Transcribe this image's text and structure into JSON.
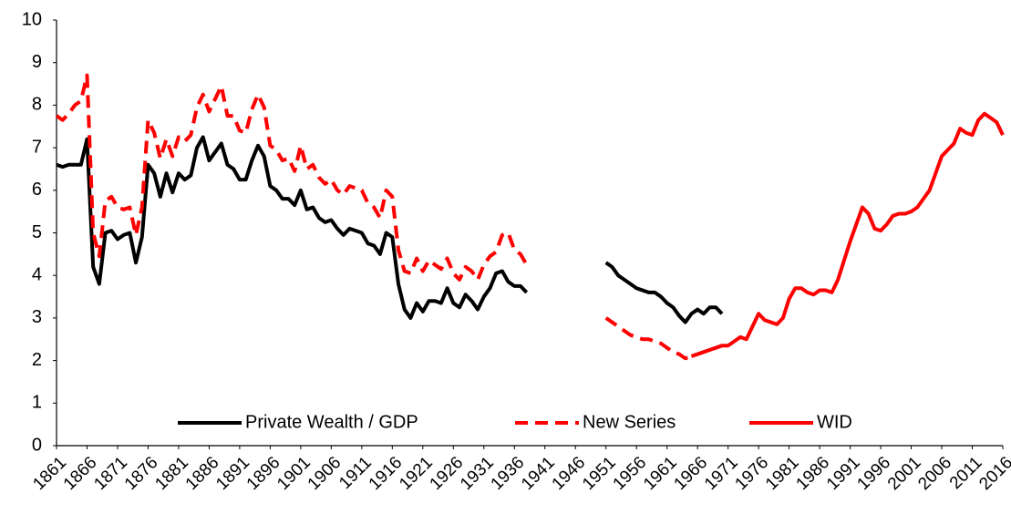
{
  "chart_data": {
    "type": "line",
    "x": [
      1861,
      1862,
      1863,
      1864,
      1865,
      1866,
      1867,
      1868,
      1869,
      1870,
      1871,
      1872,
      1873,
      1874,
      1875,
      1876,
      1877,
      1878,
      1879,
      1880,
      1881,
      1882,
      1883,
      1884,
      1885,
      1886,
      1887,
      1888,
      1889,
      1890,
      1891,
      1892,
      1893,
      1894,
      1895,
      1896,
      1897,
      1898,
      1899,
      1900,
      1901,
      1902,
      1903,
      1904,
      1905,
      1906,
      1907,
      1908,
      1909,
      1910,
      1911,
      1912,
      1913,
      1914,
      1915,
      1916,
      1917,
      1918,
      1919,
      1920,
      1921,
      1922,
      1923,
      1924,
      1925,
      1926,
      1927,
      1928,
      1929,
      1930,
      1931,
      1932,
      1933,
      1934,
      1935,
      1936,
      1937,
      1938,
      1939,
      1940,
      1941,
      1942,
      1943,
      1944,
      1945,
      1946,
      1947,
      1948,
      1949,
      1950,
      1951,
      1952,
      1953,
      1954,
      1955,
      1956,
      1957,
      1958,
      1959,
      1960,
      1961,
      1962,
      1963,
      1964,
      1965,
      1966,
      1967,
      1968,
      1969,
      1970,
      1971,
      1972,
      1973,
      1974,
      1975,
      1976,
      1977,
      1978,
      1979,
      1980,
      1981,
      1982,
      1983,
      1984,
      1985,
      1986,
      1987,
      1988,
      1989,
      1990,
      1991,
      1992,
      1993,
      1994,
      1995,
      1996,
      1997,
      1998,
      1999,
      2000,
      2001,
      2002,
      2003,
      2004,
      2005,
      2006,
      2007,
      2008,
      2009,
      2010,
      2011,
      2012,
      2013,
      2014,
      2015,
      2016
    ],
    "series": [
      {
        "name": "Private Wealth / GDP",
        "color": "#000000",
        "dashed": false,
        "values": [
          6.6,
          6.55,
          6.6,
          6.6,
          6.6,
          7.2,
          4.2,
          3.8,
          5.0,
          5.05,
          4.85,
          4.95,
          5.0,
          4.3,
          4.9,
          6.6,
          6.4,
          5.85,
          6.4,
          5.95,
          6.4,
          6.25,
          6.35,
          7.0,
          7.25,
          6.7,
          6.9,
          7.1,
          6.6,
          6.5,
          6.25,
          6.25,
          6.7,
          7.05,
          6.8,
          6.1,
          6.0,
          5.8,
          5.8,
          5.65,
          6.0,
          5.55,
          5.6,
          5.35,
          5.25,
          5.3,
          5.1,
          4.95,
          5.1,
          5.05,
          5.0,
          4.75,
          4.7,
          4.5,
          5.0,
          4.9,
          3.8,
          3.2,
          3.0,
          3.35,
          3.15,
          3.4,
          3.4,
          3.35,
          3.7,
          3.35,
          3.25,
          3.55,
          3.4,
          3.2,
          3.5,
          3.7,
          4.05,
          4.1,
          3.85,
          3.75,
          3.75,
          3.6,
          null,
          null,
          null,
          null,
          null,
          null,
          null,
          null,
          null,
          null,
          null,
          null,
          4.3,
          4.2,
          4.0,
          3.9,
          3.8,
          3.7,
          3.65,
          3.6,
          3.6,
          3.5,
          3.35,
          3.25,
          3.05,
          2.9,
          3.1,
          3.2,
          3.1,
          3.25,
          3.25,
          3.1,
          null,
          null,
          null,
          null,
          null,
          null,
          null,
          null,
          null,
          null,
          null,
          null,
          null,
          null,
          null,
          null,
          null,
          null,
          null,
          null,
          null,
          null,
          null,
          null,
          null,
          null,
          null,
          null,
          null,
          null,
          null,
          null,
          null,
          null,
          null,
          null,
          null,
          null,
          null,
          null,
          null,
          null,
          null,
          null,
          null,
          null
        ]
      },
      {
        "name": "New Series",
        "color": "#ff0000",
        "dashed": true,
        "values": [
          7.75,
          7.65,
          7.8,
          8.0,
          8.1,
          8.7,
          5.0,
          4.45,
          5.75,
          5.85,
          5.6,
          5.55,
          5.6,
          4.95,
          5.6,
          7.65,
          7.35,
          6.75,
          7.2,
          6.8,
          7.25,
          7.15,
          7.3,
          7.95,
          8.25,
          7.85,
          8.15,
          8.45,
          7.75,
          7.75,
          7.4,
          7.35,
          7.9,
          8.25,
          7.95,
          7.05,
          6.95,
          6.7,
          6.75,
          6.45,
          7.05,
          6.5,
          6.6,
          6.3,
          6.15,
          6.25,
          6.0,
          5.9,
          6.1,
          6.05,
          6.0,
          5.7,
          5.6,
          5.35,
          6.0,
          5.85,
          4.6,
          4.1,
          4.05,
          4.4,
          4.1,
          4.35,
          4.25,
          4.15,
          4.4,
          4.05,
          3.9,
          4.2,
          4.1,
          3.9,
          4.25,
          4.45,
          4.55,
          4.95,
          5.0,
          4.6,
          4.5,
          4.25,
          null,
          null,
          null,
          null,
          null,
          null,
          null,
          null,
          null,
          null,
          null,
          null,
          3.0,
          2.9,
          2.8,
          2.7,
          2.6,
          2.55,
          2.5,
          2.5,
          2.45,
          2.4,
          2.3,
          2.2,
          2.15,
          2.05,
          2.1,
          2.15,
          2.2,
          2.25,
          2.3,
          2.35,
          null,
          null,
          null,
          null,
          null,
          null,
          null,
          null,
          null,
          null,
          null,
          null,
          null,
          null,
          null,
          null,
          null,
          null,
          null,
          null,
          null,
          null,
          null,
          null,
          null,
          null,
          null,
          null,
          null,
          null,
          null,
          null,
          null,
          null,
          null,
          null,
          null,
          null,
          null,
          null,
          null,
          null,
          null,
          null,
          null,
          null
        ]
      },
      {
        "name": "WID",
        "color": "#ff0000",
        "dashed": false,
        "values": [
          null,
          null,
          null,
          null,
          null,
          null,
          null,
          null,
          null,
          null,
          null,
          null,
          null,
          null,
          null,
          null,
          null,
          null,
          null,
          null,
          null,
          null,
          null,
          null,
          null,
          null,
          null,
          null,
          null,
          null,
          null,
          null,
          null,
          null,
          null,
          null,
          null,
          null,
          null,
          null,
          null,
          null,
          null,
          null,
          null,
          null,
          null,
          null,
          null,
          null,
          null,
          null,
          null,
          null,
          null,
          null,
          null,
          null,
          null,
          null,
          null,
          null,
          null,
          null,
          null,
          null,
          null,
          null,
          null,
          null,
          null,
          null,
          null,
          null,
          null,
          null,
          null,
          null,
          null,
          null,
          null,
          null,
          null,
          null,
          null,
          null,
          null,
          null,
          null,
          null,
          null,
          null,
          null,
          null,
          null,
          null,
          null,
          null,
          null,
          null,
          null,
          null,
          null,
          null,
          2.1,
          2.15,
          2.2,
          2.25,
          2.3,
          2.35,
          2.35,
          2.45,
          2.55,
          2.5,
          2.8,
          3.1,
          2.95,
          2.9,
          2.85,
          3.0,
          3.45,
          3.7,
          3.7,
          3.6,
          3.55,
          3.65,
          3.65,
          3.6,
          3.9,
          4.35,
          4.8,
          5.2,
          5.6,
          5.45,
          5.1,
          5.05,
          5.2,
          5.4,
          5.45,
          5.45,
          5.5,
          5.6,
          5.8,
          6.0,
          6.4,
          6.8,
          6.95,
          7.1,
          7.45,
          7.35,
          7.3,
          7.65,
          7.8,
          7.7,
          7.6,
          7.3
        ]
      }
    ],
    "xlim": [
      1861,
      2016
    ],
    "xticks": [
      1861,
      1866,
      1871,
      1876,
      1881,
      1886,
      1891,
      1896,
      1901,
      1906,
      1911,
      1916,
      1921,
      1926,
      1931,
      1936,
      1941,
      1946,
      1951,
      1956,
      1961,
      1966,
      1971,
      1976,
      1981,
      1986,
      1991,
      1996,
      2001,
      2006,
      2011,
      2016
    ],
    "ylim": [
      0,
      10
    ],
    "yticks": [
      0,
      1,
      2,
      3,
      4,
      5,
      6,
      7,
      8,
      9,
      10
    ],
    "grid": false,
    "legend": "bottom"
  }
}
